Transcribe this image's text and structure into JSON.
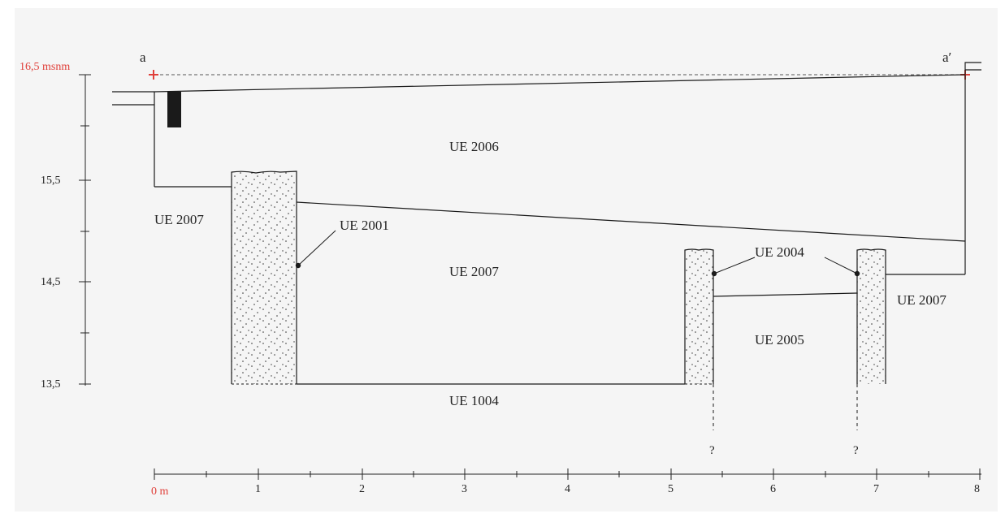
{
  "diagram": {
    "section_labels": {
      "start": "a",
      "end": "a′"
    },
    "elevation_axis": {
      "datum_label": "16,5 msnm",
      "ticks": [
        "15,5",
        "14,5",
        "13,5"
      ]
    },
    "distance_axis": {
      "origin_label": "0 m",
      "ticks": [
        "1",
        "2",
        "3",
        "4",
        "5",
        "6",
        "7",
        "8"
      ]
    },
    "units": {
      "ue2006": "UE 2006",
      "ue2007_left": "UE 2007",
      "ue2007_center": "UE 2007",
      "ue2007_right": "UE 2007",
      "ue2001": "UE 2001",
      "ue2004": "UE 2004",
      "ue2005": "UE 2005",
      "ue1004": "UE 1004"
    },
    "unknown_marks": [
      "?",
      "?"
    ],
    "colors": {
      "accent_red": "#e0403a",
      "line": "#1a1a1a",
      "fill": "#1a1a1a"
    }
  }
}
